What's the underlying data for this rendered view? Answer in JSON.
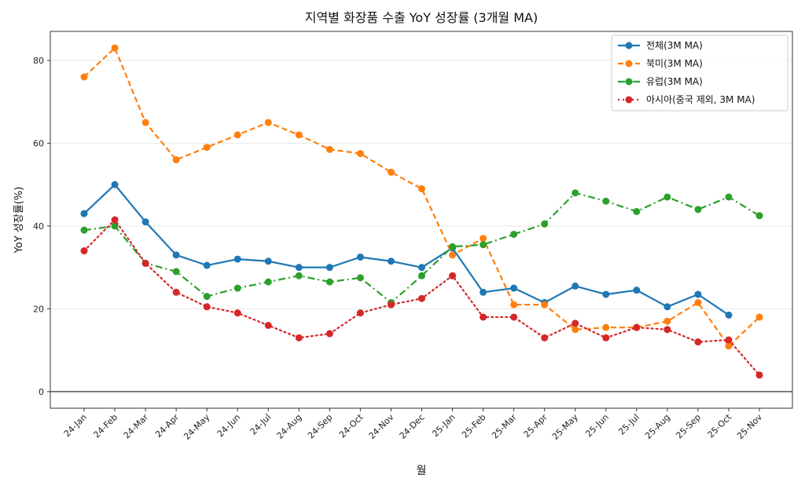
{
  "chart_data": {
    "type": "line",
    "title": "지역별 화장품 수출 YoY 성장률 (3개월 MA)",
    "xlabel": "월",
    "ylabel": "YoY 성장률(%)",
    "ylim": [
      -4,
      87
    ],
    "yticks": [
      0,
      20,
      40,
      60,
      80
    ],
    "grid": "horizontal",
    "legend_position": "top-right",
    "reference_line": 0,
    "categories": [
      "24-Jan",
      "24-Feb",
      "24-Mar",
      "24-Apr",
      "24-May",
      "24-Jun",
      "24-Jul",
      "24-Aug",
      "24-Sep",
      "24-Oct",
      "24-Nov",
      "24-Dec",
      "25-Jan",
      "25-Feb",
      "25-Mar",
      "25-Apr",
      "25-May",
      "25-Jun",
      "25-Jul",
      "25-Aug",
      "25-Sep",
      "25-Oct",
      "25-Nov"
    ],
    "series": [
      {
        "name": "전체(3M MA)",
        "color": "#1f77b4",
        "style": "solid",
        "values": [
          43,
          50,
          41,
          33,
          30.5,
          32,
          31.5,
          30,
          30,
          32.5,
          31.5,
          30,
          34.7,
          24,
          25,
          21.5,
          25.5,
          23.5,
          24.5,
          20.5,
          23.5,
          18.5,
          null
        ]
      },
      {
        "name": "북미(3M MA)",
        "color": "#ff7f0e",
        "style": "dashed",
        "values": [
          76,
          83,
          65,
          56,
          59,
          62,
          65,
          62,
          58.5,
          57.5,
          53,
          49,
          33,
          37,
          21,
          21,
          15,
          15.5,
          15.5,
          17,
          21.5,
          11,
          18
        ]
      },
      {
        "name": "유럽(3M MA)",
        "color": "#2ca02c",
        "style": "dashdot",
        "values": [
          39,
          40,
          31,
          29,
          23,
          25,
          26.5,
          28,
          26.5,
          27.5,
          21.5,
          28,
          35,
          35.5,
          38,
          40.5,
          48,
          46,
          43.5,
          47,
          44,
          47,
          42.5
        ]
      },
      {
        "name": "아시아(중국 제외, 3M MA)",
        "color": "#d62728",
        "style": "dotted",
        "values": [
          34,
          41.5,
          31,
          24,
          20.5,
          19,
          16,
          13,
          14,
          19,
          21,
          22.5,
          28,
          18,
          18,
          13,
          16.5,
          13,
          15.5,
          15,
          12,
          12.5,
          4
        ]
      }
    ]
  }
}
